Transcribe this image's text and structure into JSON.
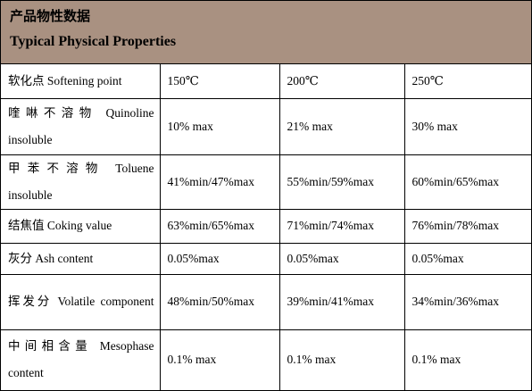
{
  "header": {
    "title_cn": "产品物性数据",
    "title_en": "Typical Physical Properties"
  },
  "rows": [
    {
      "property": "软化点 Softening point",
      "values": [
        "150℃",
        "200℃",
        "250℃"
      ]
    },
    {
      "property": "喹啉不溶物 Quinoline insoluble",
      "values": [
        "10% max",
        "21% max",
        "30% max"
      ]
    },
    {
      "property": "甲苯不溶物 Toluene insoluble",
      "values": [
        "41%min/47%max",
        "55%min/59%max",
        "60%min/65%max"
      ]
    },
    {
      "property": "结焦值 Coking value",
      "values": [
        "63%min/65%max",
        "71%min/74%max",
        "76%min/78%max"
      ]
    },
    {
      "property": "灰分 Ash content",
      "values": [
        "0.05%max",
        "0.05%max",
        "0.05%max"
      ]
    },
    {
      "property": "挥发分 Volatile component",
      "values": [
        "48%min/50%max",
        "39%min/41%max",
        "34%min/36%max"
      ]
    },
    {
      "property": "中间相含量 Mesophase content",
      "values": [
        "0.1% max",
        "0.1% max",
        "0.1% max"
      ]
    }
  ]
}
